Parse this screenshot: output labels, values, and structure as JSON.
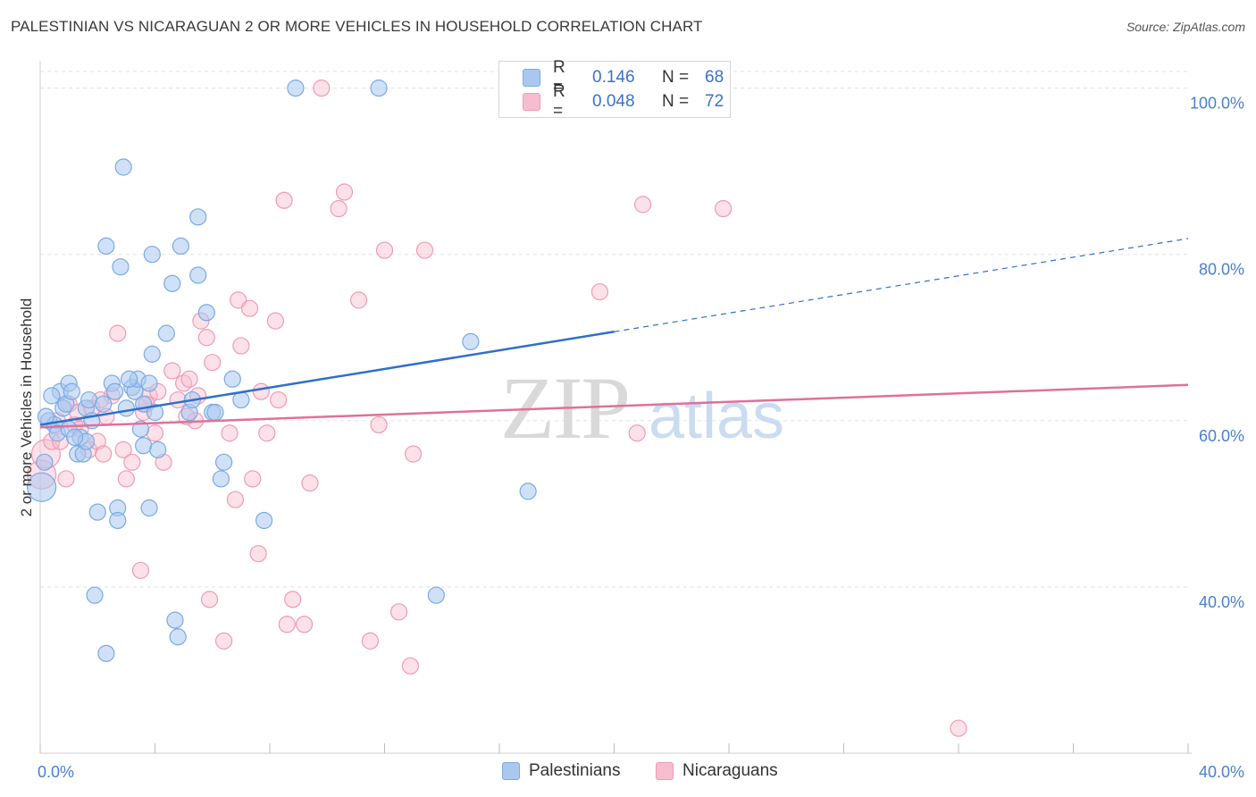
{
  "title": "PALESTINIAN VS NICARAGUAN 2 OR MORE VEHICLES IN HOUSEHOLD CORRELATION CHART",
  "source": "Source: ZipAtlas.com",
  "watermark": {
    "zip": "ZIP",
    "atlas": "atlas"
  },
  "legend": {
    "rows": [
      {
        "r_label": "R =",
        "r_value": "0.146",
        "n_label": "N =",
        "n_value": "68"
      },
      {
        "r_label": "R =",
        "r_value": "0.048",
        "n_label": "N =",
        "n_value": "72"
      }
    ]
  },
  "bottom_legend": [
    "Palestinians",
    "Nicaraguans"
  ],
  "colors": {
    "blue_fill": "#a9c8f0",
    "blue_stroke": "#7aaae2",
    "blue_line": "#2f6fcc",
    "pink_fill": "#f8bccf",
    "pink_stroke": "#ef9ab5",
    "pink_line": "#e0709a",
    "axis_text": "#4a7fd0",
    "grid": "#e3e3e3"
  },
  "chart_data": {
    "type": "scatter",
    "title": "PALESTINIAN VS NICARAGUAN 2 OR MORE VEHICLES IN HOUSEHOLD CORRELATION CHART",
    "xlabel": "",
    "ylabel": "2 or more Vehicles in Household",
    "xlim": [
      0,
      40
    ],
    "ylim": [
      20,
      102
    ],
    "x_tick_labels": [
      "0.0%",
      "40.0%"
    ],
    "y_ticks": [
      40,
      60,
      80,
      100
    ],
    "y_tick_labels": [
      "40.0%",
      "60.0%",
      "80.0%",
      "100.0%"
    ],
    "series": [
      {
        "name": "Palestinians",
        "r": 0.146,
        "n": 68,
        "trend": {
          "x0": 0,
          "y0": 59.5,
          "x1": 20,
          "y1": 70.7,
          "dashed_to_x": 40,
          "dashed_to_y": 81.9
        },
        "points": [
          [
            0.05,
            52
          ],
          [
            0.15,
            55
          ],
          [
            0.3,
            60
          ],
          [
            0.5,
            59.5
          ],
          [
            0.6,
            58.5
          ],
          [
            0.7,
            63.5
          ],
          [
            0.8,
            61.5
          ],
          [
            0.9,
            62
          ],
          [
            1.0,
            64.5
          ],
          [
            1.0,
            59
          ],
          [
            1.1,
            63.5
          ],
          [
            1.3,
            56
          ],
          [
            1.4,
            58
          ],
          [
            1.5,
            56
          ],
          [
            1.6,
            61.5
          ],
          [
            1.6,
            57.5
          ],
          [
            1.7,
            62.5
          ],
          [
            1.8,
            60
          ],
          [
            1.9,
            39
          ],
          [
            2.0,
            49
          ],
          [
            2.2,
            62
          ],
          [
            2.3,
            32
          ],
          [
            2.3,
            81
          ],
          [
            2.5,
            64.5
          ],
          [
            2.6,
            63.5
          ],
          [
            2.7,
            49.5
          ],
          [
            2.7,
            48
          ],
          [
            2.8,
            78.5
          ],
          [
            2.9,
            90.5
          ],
          [
            3.0,
            61.5
          ],
          [
            3.2,
            64
          ],
          [
            3.3,
            63.5
          ],
          [
            3.4,
            65
          ],
          [
            3.5,
            59
          ],
          [
            3.6,
            62
          ],
          [
            3.6,
            57
          ],
          [
            3.8,
            64.5
          ],
          [
            3.8,
            49.5
          ],
          [
            3.9,
            68
          ],
          [
            3.9,
            80
          ],
          [
            4.1,
            56.5
          ],
          [
            4.4,
            70.5
          ],
          [
            4.6,
            76.5
          ],
          [
            4.7,
            36
          ],
          [
            4.8,
            34
          ],
          [
            4.9,
            81
          ],
          [
            5.2,
            61
          ],
          [
            5.3,
            62.5
          ],
          [
            5.5,
            84.5
          ],
          [
            5.5,
            77.5
          ],
          [
            5.8,
            73
          ],
          [
            6.0,
            61
          ],
          [
            6.1,
            61
          ],
          [
            6.3,
            53
          ],
          [
            6.4,
            55
          ],
          [
            6.7,
            65
          ],
          [
            7.0,
            62.5
          ],
          [
            7.8,
            48
          ],
          [
            8.9,
            100
          ],
          [
            11.8,
            100
          ],
          [
            13.8,
            39
          ],
          [
            15.0,
            69.5
          ],
          [
            17.0,
            51.5
          ],
          [
            0.2,
            60.5
          ],
          [
            0.4,
            63
          ],
          [
            1.2,
            58
          ],
          [
            3.1,
            65
          ],
          [
            4.0,
            61
          ]
        ]
      },
      {
        "name": "Nicaraguans",
        "r": 0.048,
        "n": 72,
        "trend": {
          "x0": 0,
          "y0": 59.2,
          "x1": 40,
          "y1": 64.3
        },
        "points": [
          [
            0.05,
            53.5
          ],
          [
            0.2,
            56
          ],
          [
            0.4,
            57.5
          ],
          [
            0.6,
            60
          ],
          [
            0.7,
            57.5
          ],
          [
            0.9,
            53
          ],
          [
            1.0,
            62
          ],
          [
            1.2,
            59.5
          ],
          [
            1.4,
            59
          ],
          [
            1.7,
            56.5
          ],
          [
            1.8,
            61.5
          ],
          [
            2.0,
            57.5
          ],
          [
            2.2,
            56
          ],
          [
            2.3,
            60.5
          ],
          [
            2.5,
            63
          ],
          [
            2.7,
            70.5
          ],
          [
            2.9,
            56.5
          ],
          [
            3.0,
            53
          ],
          [
            3.2,
            55
          ],
          [
            3.5,
            42
          ],
          [
            3.6,
            61
          ],
          [
            3.8,
            63
          ],
          [
            4.0,
            58.5
          ],
          [
            4.1,
            63.5
          ],
          [
            4.3,
            55
          ],
          [
            4.6,
            66
          ],
          [
            4.8,
            62.5
          ],
          [
            5.0,
            64.5
          ],
          [
            5.2,
            65
          ],
          [
            5.4,
            60
          ],
          [
            5.5,
            63
          ],
          [
            5.6,
            72
          ],
          [
            5.8,
            70
          ],
          [
            5.9,
            38.5
          ],
          [
            6.0,
            67
          ],
          [
            6.4,
            33.5
          ],
          [
            6.6,
            58.5
          ],
          [
            6.8,
            50.5
          ],
          [
            6.9,
            74.5
          ],
          [
            7.0,
            69
          ],
          [
            7.3,
            73.5
          ],
          [
            7.4,
            53
          ],
          [
            7.6,
            44
          ],
          [
            7.7,
            63.5
          ],
          [
            7.9,
            58.5
          ],
          [
            8.2,
            72
          ],
          [
            8.3,
            62.5
          ],
          [
            8.5,
            86.5
          ],
          [
            8.6,
            35.5
          ],
          [
            8.8,
            38.5
          ],
          [
            9.2,
            35.5
          ],
          [
            9.4,
            52.5
          ],
          [
            9.8,
            100
          ],
          [
            10.4,
            85.5
          ],
          [
            10.6,
            87.5
          ],
          [
            11.1,
            74.5
          ],
          [
            11.5,
            33.5
          ],
          [
            11.8,
            59.5
          ],
          [
            12.0,
            80.5
          ],
          [
            12.5,
            37
          ],
          [
            12.9,
            30.5
          ],
          [
            13.0,
            56
          ],
          [
            13.4,
            80.5
          ],
          [
            19.5,
            75.5
          ],
          [
            20.8,
            58.5
          ],
          [
            21.0,
            86
          ],
          [
            23.8,
            85.5
          ],
          [
            32.0,
            23
          ],
          [
            1.3,
            61
          ],
          [
            2.1,
            62.5
          ],
          [
            3.7,
            62
          ],
          [
            5.1,
            60.5
          ]
        ]
      }
    ]
  }
}
